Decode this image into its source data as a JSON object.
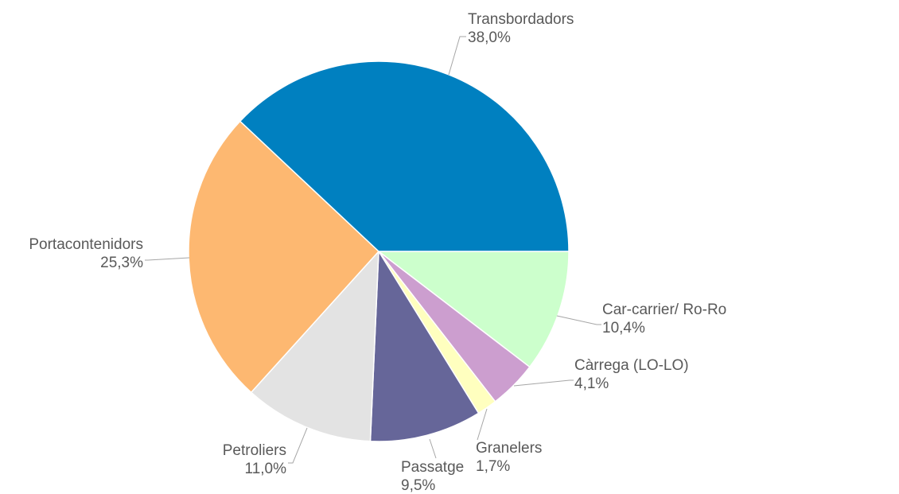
{
  "chart_data": {
    "type": "pie",
    "categories": [
      "Car-carrier/ Ro-Ro",
      "Càrrega (LO-LO)",
      "Granelers",
      "Passatge",
      "Petroliers",
      "Portacontenidors",
      "Transbordadors"
    ],
    "values": [
      10.4,
      4.1,
      1.7,
      9.5,
      11.0,
      25.3,
      38.0
    ],
    "value_labels": [
      "10,4%",
      "4,1%",
      "1,7%",
      "9,5%",
      "11,0%",
      "25,3%",
      "38,0%"
    ],
    "colors": [
      "#ccffcc",
      "#cc9ecf",
      "#ffffbf",
      "#666699",
      "#e3e3e3",
      "#fdb871",
      "#0080c0"
    ]
  }
}
